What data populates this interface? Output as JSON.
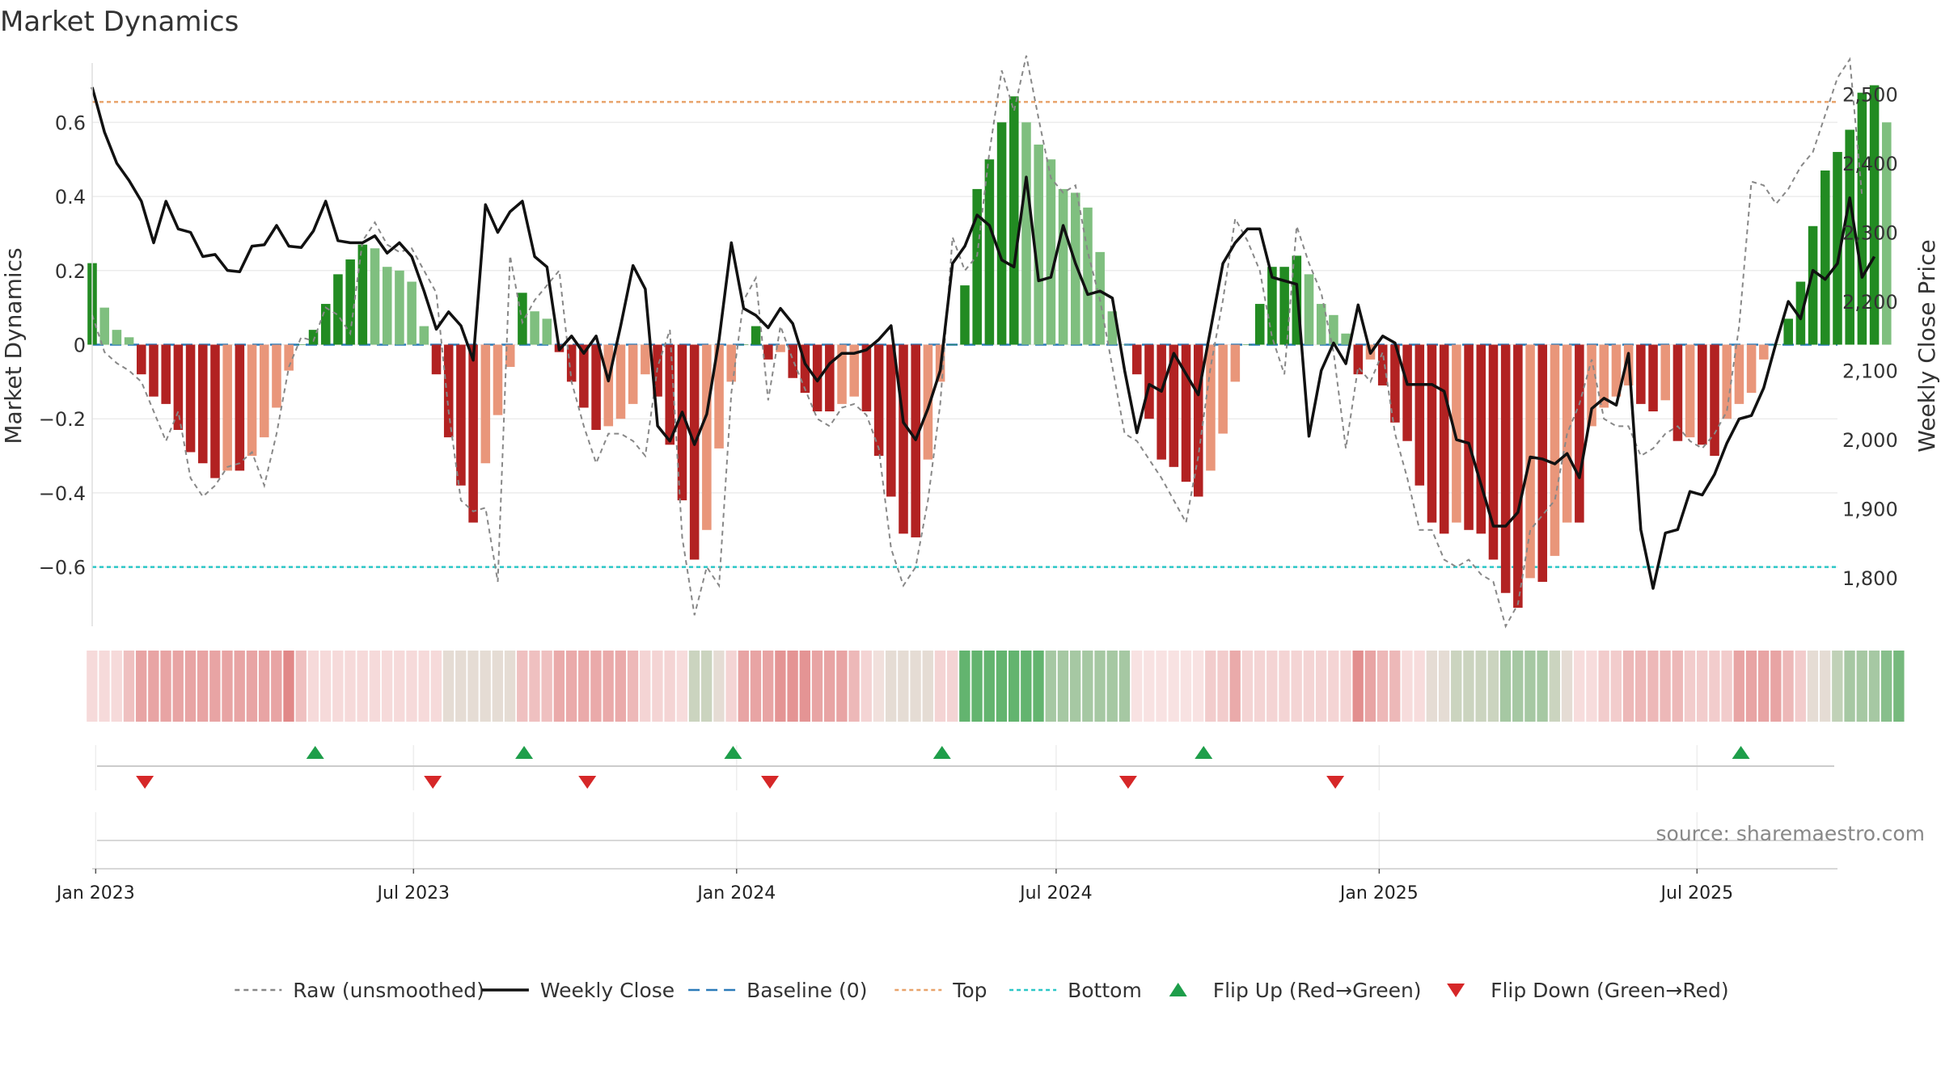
{
  "chart_data": {
    "type": "bar",
    "title": "Market Dynamics",
    "y_left_label": "Market Dynamics",
    "y_right_label": "Weekly Close Price",
    "ylim": [
      -0.76,
      0.76
    ],
    "y_ticks": [
      0.6,
      0.4,
      0.2,
      0,
      -0.2,
      -0.4,
      -0.6
    ],
    "y_tick_labels": [
      "0.6",
      "0.4",
      "0.2",
      "0",
      "−0.2",
      "−0.4",
      "−0.6"
    ],
    "y2lim": [
      1730,
      2545
    ],
    "y2_ticks": [
      2500,
      2400,
      2300,
      2200,
      2100,
      2000,
      1900,
      1800
    ],
    "y2_tick_labels": [
      "2,500",
      "2,400",
      "2,300",
      "2,200",
      "2,100",
      "2,000",
      "1,900",
      "1,800"
    ],
    "x_range": [
      "2022-12-30",
      "2025-09-19"
    ],
    "x_ticks": [
      "2023-01-01",
      "2023-07-01",
      "2024-01-01",
      "2024-07-01",
      "2025-01-01",
      "2025-07-01"
    ],
    "x_tick_labels": [
      "Jan 2023",
      "Jul 2023",
      "Jan 2024",
      "Jul 2024",
      "Jan 2025",
      "Jul 2025"
    ],
    "start_date": "2022-12-30",
    "top_level": 0.655,
    "bottom_level": -0.6,
    "baseline": 0,
    "grid": true,
    "legend_position": "bottom",
    "source_text": "source: sharemaestro.com",
    "legend": [
      {
        "label": "Raw (unsmoothed)",
        "kind": "line",
        "color": "#888888",
        "dash": "6,5"
      },
      {
        "label": "Weekly Close",
        "kind": "line",
        "color": "#111111",
        "dash": ""
      },
      {
        "label": "Baseline (0)",
        "kind": "line",
        "color": "#2b7bb9",
        "dash": "14,8"
      },
      {
        "label": "Top",
        "kind": "line",
        "color": "#e8a36b",
        "dash": "5,4"
      },
      {
        "label": "Bottom",
        "kind": "line",
        "color": "#2bc7c7",
        "dash": "5,4"
      },
      {
        "label": "Flip Up (Red→Green)",
        "kind": "up",
        "color": "#1e9e4a"
      },
      {
        "label": "Flip Down (Green→Red)",
        "kind": "down",
        "color": "#d62728"
      }
    ],
    "colors": {
      "green_dark": "#228b22",
      "green_light": "#7fbf7f",
      "red_dark": "#b22222",
      "red_light": "#e9967a",
      "raw": "#888888",
      "close": "#111111",
      "baseline": "#2b7bb9",
      "top": "#e8a36b",
      "bottom": "#2bc7c7",
      "flip_up": "#1e9e4a",
      "flip_down": "#d62728"
    },
    "series": [
      {
        "name": "Market Dynamics",
        "values": [
          0.22,
          0.1,
          0.04,
          0.02,
          -0.08,
          -0.14,
          -0.16,
          -0.23,
          -0.29,
          -0.32,
          -0.36,
          -0.34,
          -0.34,
          -0.3,
          -0.25,
          -0.17,
          -0.07,
          0,
          0.04,
          0.11,
          0.19,
          0.23,
          0.27,
          0.26,
          0.21,
          0.2,
          0.17,
          0.05,
          -0.08,
          -0.25,
          -0.38,
          -0.48,
          -0.32,
          -0.19,
          -0.06,
          0.14,
          0.09,
          0.07,
          -0.02,
          -0.1,
          -0.17,
          -0.23,
          -0.22,
          -0.2,
          -0.16,
          -0.08,
          -0.14,
          -0.27,
          -0.42,
          -0.58,
          -0.5,
          -0.28,
          -0.1,
          0,
          0.05,
          -0.04,
          -0.02,
          -0.09,
          -0.13,
          -0.18,
          -0.18,
          -0.16,
          -0.14,
          -0.18,
          -0.3,
          -0.41,
          -0.51,
          -0.52,
          -0.31,
          -0.1,
          0,
          0.16,
          0.42,
          0.5,
          0.6,
          0.67,
          0.6,
          0.54,
          0.5,
          0.42,
          0.41,
          0.37,
          0.25,
          0.09,
          0,
          -0.08,
          -0.2,
          -0.31,
          -0.33,
          -0.37,
          -0.41,
          -0.34,
          -0.24,
          -0.1,
          0,
          0.11,
          0.21,
          0.21,
          0.24,
          0.19,
          0.11,
          0.08,
          0.03,
          -0.08,
          -0.04,
          -0.11,
          -0.21,
          -0.26,
          -0.38,
          -0.48,
          -0.51,
          -0.48,
          -0.5,
          -0.51,
          -0.58,
          -0.67,
          -0.71,
          -0.63,
          -0.64,
          -0.57,
          -0.48,
          -0.48,
          -0.22,
          -0.17,
          -0.14,
          -0.11,
          -0.16,
          -0.18,
          -0.15,
          -0.26,
          -0.25,
          -0.27,
          -0.3,
          -0.2,
          -0.16,
          -0.13,
          -0.04,
          0,
          0.07,
          0.17,
          0.32,
          0.47,
          0.52,
          0.58,
          0.68,
          0.7,
          0.6
        ]
      },
      {
        "name": "Raw (unsmoothed)",
        "values": [
          0.08,
          -0.02,
          -0.05,
          -0.07,
          -0.1,
          -0.18,
          -0.26,
          -0.18,
          -0.36,
          -0.41,
          -0.38,
          -0.33,
          -0.32,
          -0.29,
          -0.38,
          -0.24,
          -0.06,
          0.02,
          0.01,
          0.1,
          0.08,
          0.03,
          0.28,
          0.33,
          0.27,
          0.25,
          0.26,
          0.2,
          0.14,
          -0.18,
          -0.42,
          -0.45,
          -0.44,
          -0.64,
          0.24,
          0.06,
          0.12,
          0.16,
          0.2,
          -0.1,
          -0.22,
          -0.32,
          -0.24,
          -0.24,
          -0.26,
          -0.3,
          -0.06,
          0.04,
          -0.52,
          -0.73,
          -0.6,
          -0.65,
          -0.13,
          0.12,
          0.18,
          -0.15,
          0.05,
          -0.04,
          -0.12,
          -0.2,
          -0.22,
          -0.17,
          -0.16,
          -0.19,
          -0.28,
          -0.55,
          -0.65,
          -0.6,
          -0.42,
          -0.16,
          0.29,
          0.2,
          0.24,
          0.52,
          0.74,
          0.63,
          0.78,
          0.61,
          0.45,
          0.41,
          0.43,
          0.25,
          0.12,
          -0.06,
          -0.24,
          -0.26,
          -0.31,
          -0.36,
          -0.42,
          -0.48,
          -0.3,
          -0.06,
          0.12,
          0.34,
          0.28,
          0.2,
          0.02,
          -0.08,
          0.32,
          0.22,
          0.14,
          -0.02,
          -0.28,
          -0.06,
          -0.1,
          -0.02,
          -0.24,
          -0.36,
          -0.5,
          -0.5,
          -0.58,
          -0.6,
          -0.58,
          -0.62,
          -0.64,
          -0.76,
          -0.7,
          -0.5,
          -0.46,
          -0.42,
          -0.24,
          -0.16,
          -0.04,
          -0.2,
          -0.22,
          -0.22,
          -0.3,
          -0.28,
          -0.24,
          -0.22,
          -0.26,
          -0.28,
          -0.24,
          -0.18,
          0.05,
          0.44,
          0.43,
          0.38,
          0.42,
          0.48,
          0.52,
          0.62,
          0.72,
          0.77,
          0.4
        ]
      },
      {
        "name": "Weekly Close",
        "values": [
          2510,
          2445,
          2400,
          2375,
          2345,
          2285,
          2345,
          2305,
          2300,
          2265,
          2268,
          2245,
          2243,
          2280,
          2282,
          2310,
          2280,
          2278,
          2302,
          2345,
          2288,
          2285,
          2285,
          2295,
          2270,
          2285,
          2265,
          2215,
          2160,
          2185,
          2165,
          2115,
          2340,
          2300,
          2330,
          2345,
          2265,
          2250,
          2130,
          2150,
          2125,
          2150,
          2085,
          2165,
          2252,
          2218,
          2020,
          1998,
          2040,
          1993,
          2037,
          2145,
          2285,
          2190,
          2180,
          2162,
          2190,
          2168,
          2110,
          2085,
          2110,
          2125,
          2125,
          2130,
          2145,
          2165,
          2025,
          2000,
          2045,
          2100,
          2255,
          2280,
          2325,
          2310,
          2260,
          2250,
          2380,
          2230,
          2235,
          2310,
          2255,
          2210,
          2215,
          2205,
          2100,
          2010,
          2080,
          2070,
          2125,
          2095,
          2065,
          2160,
          2255,
          2285,
          2305,
          2305,
          2235,
          2230,
          2225,
          2005,
          2100,
          2140,
          2110,
          2195,
          2125,
          2150,
          2140,
          2080,
          2080,
          2080,
          2070,
          2000,
          1995,
          1935,
          1875,
          1875,
          1895,
          1975,
          1972,
          1965,
          1980,
          1945,
          2045,
          2060,
          2050,
          2125,
          1870,
          1785,
          1865,
          1870,
          1925,
          1920,
          1950,
          1995,
          2030,
          2035,
          2075,
          2140,
          2200,
          2175,
          2245,
          2232,
          2255,
          2350,
          2235,
          2265
        ]
      }
    ],
    "colorband": [
      0.47,
      0.47,
      0.47,
      0.38,
      0.28,
      0.28,
      0.28,
      0.28,
      0.28,
      0.28,
      0.28,
      0.28,
      0.28,
      0.28,
      0.28,
      0.28,
      0.18,
      0.38,
      0.47,
      0.47,
      0.47,
      0.47,
      0.47,
      0.47,
      0.47,
      0.47,
      0.47,
      0.47,
      0.47,
      0.55,
      0.55,
      0.55,
      0.55,
      0.55,
      0.55,
      0.38,
      0.38,
      0.38,
      0.3,
      0.3,
      0.3,
      0.3,
      0.3,
      0.3,
      0.35,
      0.45,
      0.45,
      0.45,
      0.48,
      0.62,
      0.62,
      0.55,
      0.45,
      0.28,
      0.28,
      0.28,
      0.22,
      0.22,
      0.22,
      0.28,
      0.28,
      0.28,
      0.35,
      0.45,
      0.52,
      0.55,
      0.55,
      0.55,
      0.55,
      0.45,
      0.45,
      0.9,
      0.9,
      0.9,
      0.9,
      0.9,
      0.9,
      0.9,
      0.72,
      0.72,
      0.72,
      0.72,
      0.72,
      0.72,
      0.72,
      0.5,
      0.5,
      0.5,
      0.5,
      0.5,
      0.5,
      0.42,
      0.42,
      0.3,
      0.45,
      0.45,
      0.45,
      0.45,
      0.45,
      0.45,
      0.45,
      0.45,
      0.45,
      0.2,
      0.28,
      0.35,
      0.35,
      0.48,
      0.48,
      0.55,
      0.55,
      0.62,
      0.62,
      0.62,
      0.62,
      0.72,
      0.72,
      0.72,
      0.72,
      0.62,
      0.55,
      0.48,
      0.48,
      0.42,
      0.42,
      0.35,
      0.35,
      0.35,
      0.35,
      0.35,
      0.42,
      0.42,
      0.42,
      0.42,
      0.28,
      0.28,
      0.28,
      0.28,
      0.35,
      0.42,
      0.55,
      0.55,
      0.65,
      0.72,
      0.72,
      0.72,
      0.8,
      0.85
    ],
    "flip_up_dates": [
      "2023-05-06",
      "2023-09-02",
      "2023-12-30",
      "2024-04-27",
      "2024-09-23",
      "2025-07-26"
    ],
    "flip_down_dates": [
      "2023-01-29",
      "2023-07-12",
      "2023-10-08",
      "2024-01-20",
      "2024-08-11",
      "2024-12-07"
    ]
  }
}
